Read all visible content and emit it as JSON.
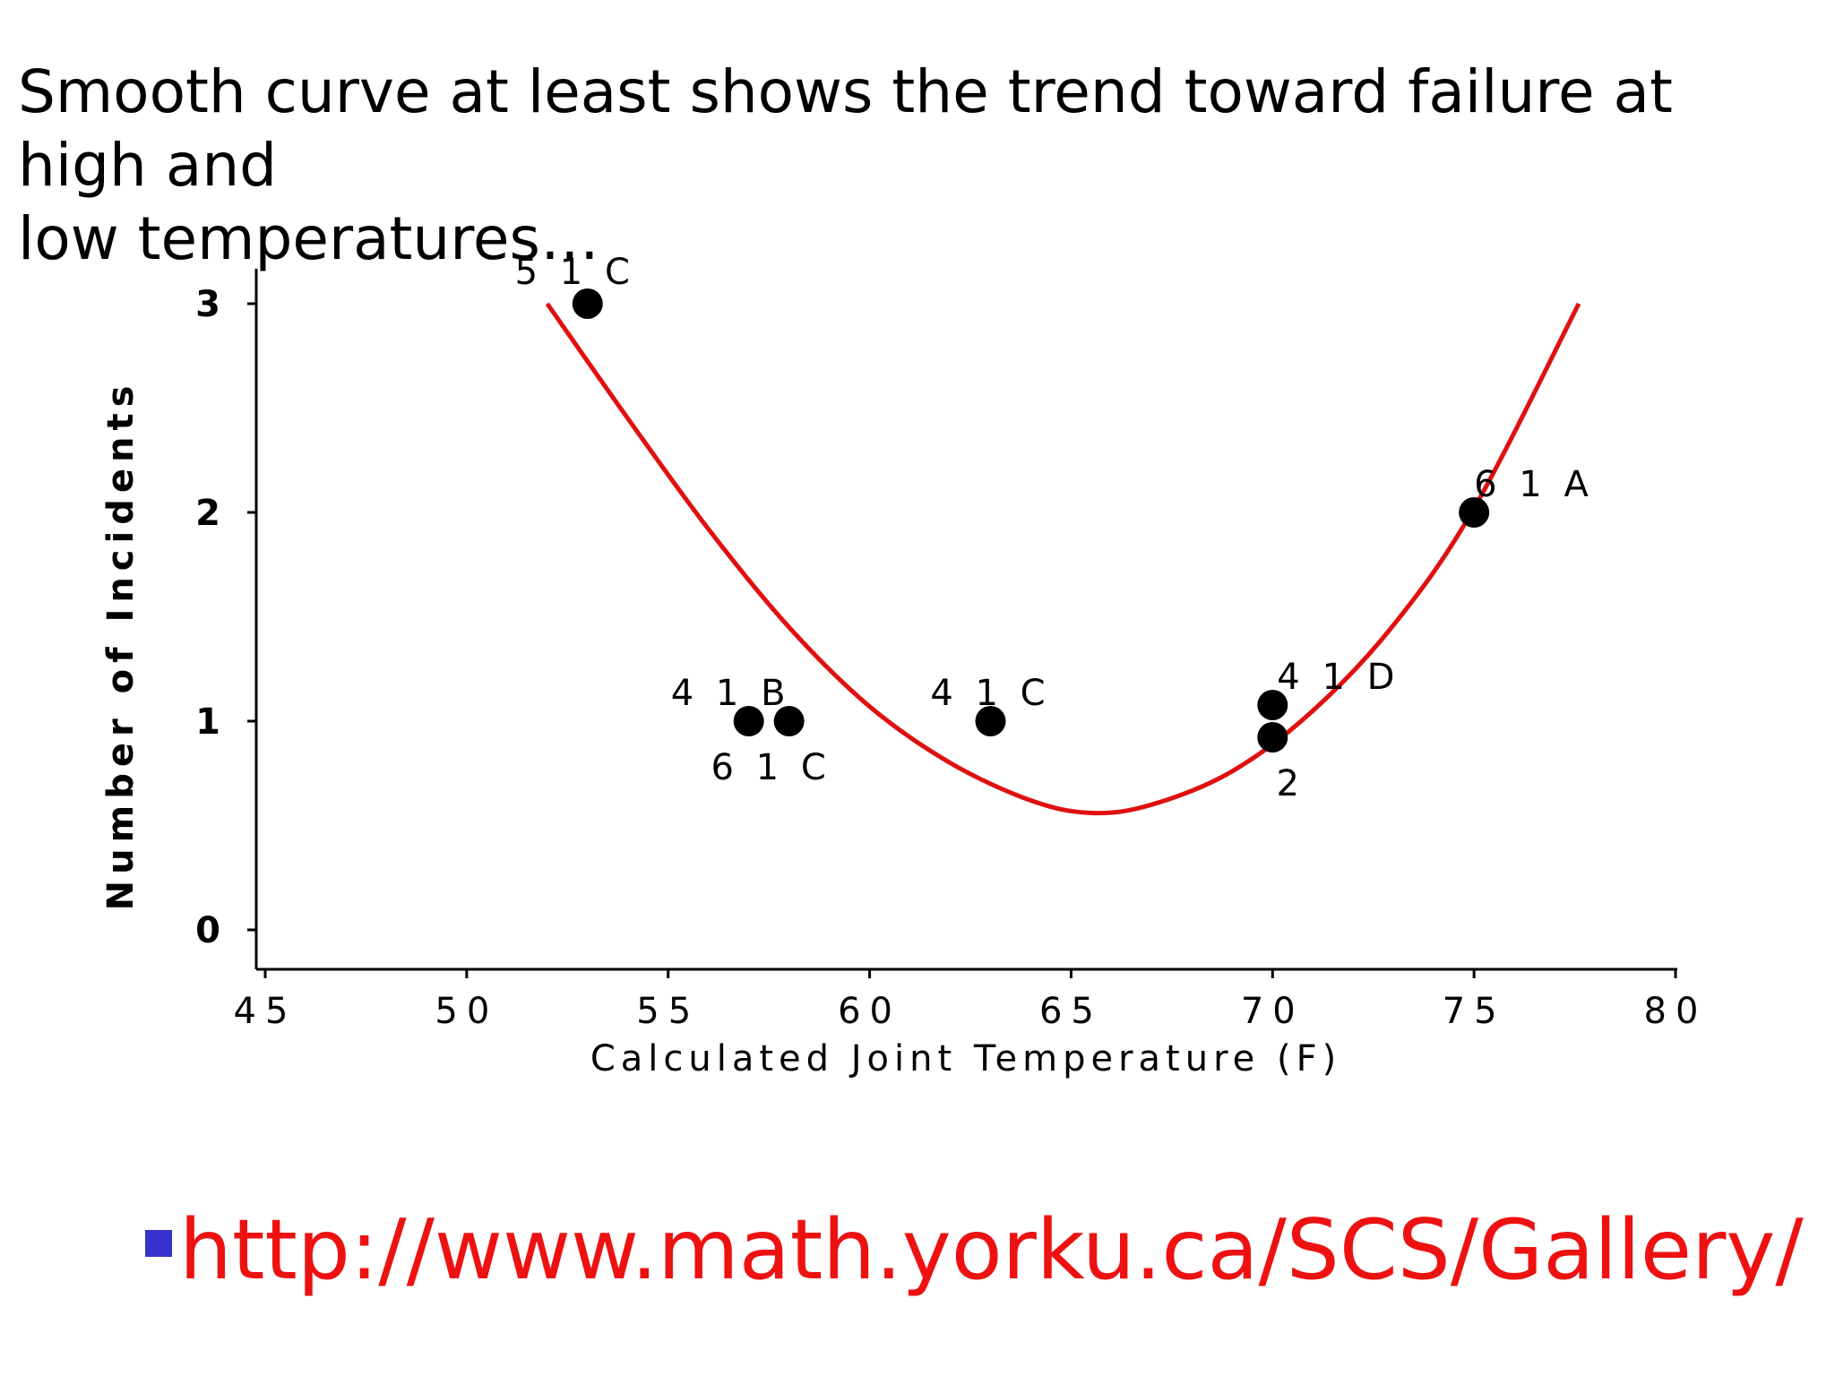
{
  "slide": {
    "title_lines": [
      "Smooth curve at least shows the trend toward failure at high and",
      "low temperatures…"
    ],
    "link_text": "http://www.math.yorku.ca/SCS/Gallery/",
    "colors": {
      "link": "#ee1111",
      "bullet": "#3333cc",
      "curve": "#e01010",
      "points": "#000000"
    }
  },
  "chart_data": {
    "type": "scatter",
    "xlabel": "Calculated Joint Temperature (F)",
    "ylabel": "Number of Incidents",
    "xlim": [
      45,
      80
    ],
    "ylim": [
      0,
      3
    ],
    "xticks": [
      45,
      50,
      55,
      60,
      65,
      70,
      75,
      80
    ],
    "yticks": [
      0,
      1,
      2,
      3
    ],
    "grid": false,
    "points": [
      {
        "x": 53,
        "y": 3,
        "label": "51C"
      },
      {
        "x": 57,
        "y": 1,
        "label": "41B"
      },
      {
        "x": 58,
        "y": 1,
        "label": "61C"
      },
      {
        "x": 63,
        "y": 1,
        "label": "41C"
      },
      {
        "x": 70,
        "y": 1,
        "label": "41D"
      },
      {
        "x": 70,
        "y": 1,
        "label": "2"
      },
      {
        "x": 75,
        "y": 2,
        "label": "61A"
      }
    ],
    "smooth_curve": {
      "x": [
        52,
        54,
        56,
        58,
        60,
        62,
        64,
        65.5,
        67,
        69,
        71,
        73,
        75,
        77.6
      ],
      "y": [
        3.0,
        2.45,
        1.92,
        1.45,
        1.07,
        0.8,
        0.62,
        0.56,
        0.6,
        0.76,
        1.05,
        1.46,
        2.02,
        3.0
      ]
    }
  }
}
